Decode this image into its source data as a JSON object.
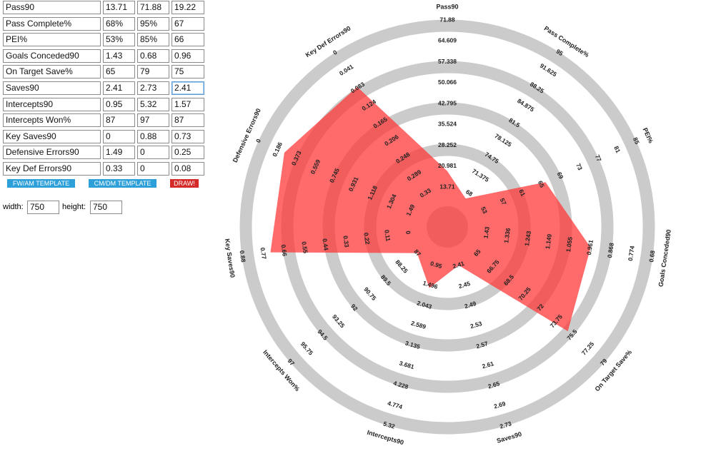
{
  "table": {
    "rows": [
      [
        "Pass90",
        13.71,
        71.88,
        19.22
      ],
      [
        "Pass Complete%",
        "68%",
        "95%",
        67
      ],
      [
        "PEI%",
        "53%",
        "85%",
        66
      ],
      [
        "Goals Conceded90",
        1.43,
        0.68,
        0.96
      ],
      [
        "On Target Save%",
        65,
        79,
        75
      ],
      [
        "Saves90",
        2.41,
        2.73,
        2.41
      ],
      [
        "Intercepts90",
        0.95,
        5.32,
        1.57
      ],
      [
        "Intercepts Won%",
        87,
        97,
        87
      ],
      [
        "Key Saves90",
        0,
        0.88,
        0.73
      ],
      [
        "Defensive Errors90",
        1.49,
        0,
        0.25
      ],
      [
        "Key Def Errors90",
        0.33,
        0,
        0.08
      ]
    ]
  },
  "buttons": [
    "FW/AM TEMPLATE",
    "CM/DM TEMPLATE",
    "DRAW!"
  ],
  "size": {
    "width_label": "width:",
    "width": 750,
    "height_label": "height:",
    "height": 750
  },
  "radar": {
    "ticks": [
      [
        13.71,
        20.981,
        28.252,
        35.524,
        42.795,
        50.066,
        57.338,
        64.609,
        71.88
      ],
      [
        68,
        71.375,
        74.75,
        78.125,
        81.5,
        84.875,
        88.25,
        91.625,
        95
      ],
      [
        53,
        57,
        61,
        65,
        69,
        73,
        77,
        81,
        85
      ],
      [
        1.43,
        1.336,
        1.243,
        1.149,
        1.055,
        0.961,
        0.868,
        0.774,
        0.68
      ],
      [
        65,
        66.75,
        68.5,
        70.25,
        72,
        73.75,
        75.5,
        77.25,
        79
      ],
      [
        2.41,
        2.45,
        2.49,
        2.53,
        2.57,
        2.61,
        2.65,
        2.69,
        2.73
      ],
      [
        0.95,
        1.496,
        2.043,
        2.589,
        3.135,
        3.681,
        4.228,
        4.774,
        5.32
      ],
      [
        87,
        88.25,
        89.5,
        90.75,
        92,
        93.25,
        94.5,
        95.75,
        97
      ],
      [
        0,
        0.11,
        0.22,
        0.33,
        0.44,
        0.55,
        0.66,
        0.77,
        0.88
      ],
      [
        1.49,
        1.304,
        1.118,
        0.931,
        0.745,
        0.559,
        0.373,
        0.186,
        0
      ],
      [
        0.33,
        0.289,
        0.248,
        0.206,
        0.165,
        0.124,
        0.083,
        0.041,
        0
      ]
    ]
  }
}
